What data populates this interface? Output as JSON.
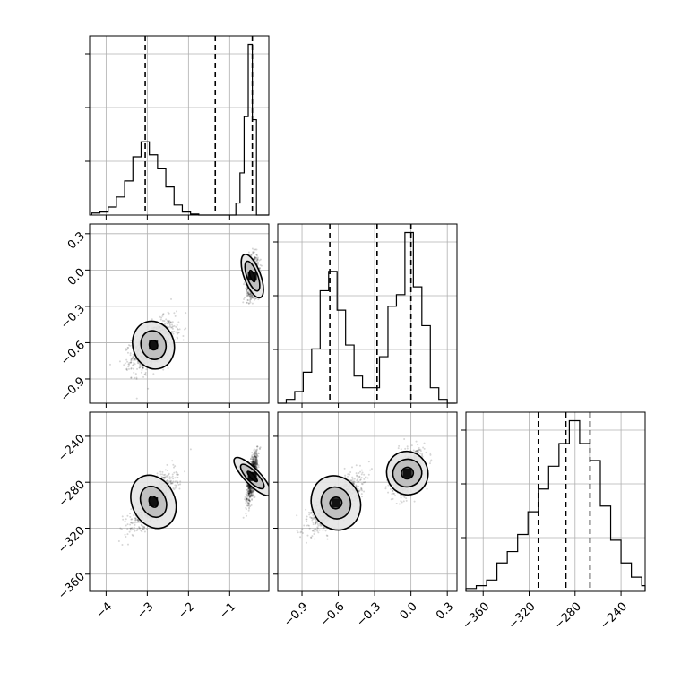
{
  "chart_data": {
    "type": "corner",
    "params": [
      {
        "axis_range": [
          -4.4,
          -0.05
        ],
        "x_ticks": [
          -4,
          -3,
          -2,
          -1
        ],
        "x_tick_labels": [
          "−4",
          "−3",
          "−2",
          "−1"
        ],
        "quantiles": [
          -3.05,
          -1.35,
          -0.45
        ],
        "hist_bin_edges": [
          -4.35,
          -4.15,
          -3.95,
          -3.75,
          -3.55,
          -3.35,
          -3.15,
          -2.95,
          -2.75,
          -2.55,
          -2.35,
          -2.15,
          -1.95,
          -1.75,
          -1.55,
          -1.35,
          -1.15,
          -0.95,
          -0.85,
          -0.75,
          -0.65,
          -0.55,
          -0.45,
          -0.35,
          -0.25,
          -0.05
        ],
        "hist_counts": [
          2,
          3,
          8,
          18,
          34,
          58,
          73,
          60,
          46,
          28,
          10,
          3,
          1,
          0,
          0,
          0,
          0,
          0,
          12,
          42,
          98,
          170,
          95,
          0,
          0
        ]
      },
      {
        "axis_range": [
          -1.1,
          0.38
        ],
        "x_ticks": [
          -0.9,
          -0.6,
          -0.3,
          0.0,
          0.3
        ],
        "x_tick_labels": [
          "−0.9",
          "−0.6",
          "−0.3",
          "0.0",
          "0.3"
        ],
        "y_ticks": [
          -0.9,
          -0.6,
          -0.3,
          0.0,
          0.3
        ],
        "y_tick_labels": [
          "−0.9",
          "−0.6",
          "−0.3",
          "0.0",
          "0.3"
        ],
        "quantiles": [
          -0.67,
          -0.28,
          0.0
        ],
        "hist_bin_edges": [
          -1.1,
          -1.03,
          -0.96,
          -0.89,
          -0.82,
          -0.75,
          -0.68,
          -0.61,
          -0.54,
          -0.47,
          -0.4,
          -0.33,
          -0.26,
          -0.19,
          -0.12,
          -0.05,
          0.02,
          0.09,
          0.16,
          0.23,
          0.3,
          0.37
        ],
        "hist_counts": [
          0,
          1,
          3,
          8,
          14,
          29,
          34,
          24,
          15,
          7,
          4,
          4,
          12,
          25,
          28,
          44,
          30,
          20,
          4,
          1,
          0
        ]
      },
      {
        "axis_range": [
          -375,
          -219
        ],
        "x_ticks": [
          -360,
          -320,
          -280,
          -240
        ],
        "x_tick_labels": [
          "−360",
          "−320",
          "−280",
          "−240"
        ],
        "y_ticks": [
          -360,
          -320,
          -280,
          -240
        ],
        "y_tick_labels": [
          "−360",
          "−320",
          "−280",
          "−240"
        ],
        "quantiles": [
          -312,
          -288,
          -267
        ],
        "hist_bin_edges": [
          -375,
          -366,
          -357,
          -348,
          -339,
          -330,
          -321,
          -312,
          -303,
          -294,
          -285,
          -276,
          -267,
          -258,
          -249,
          -240,
          -231,
          -222,
          -219
        ],
        "hist_counts": [
          1,
          2,
          4,
          10,
          14,
          20,
          28,
          36,
          44,
          52,
          60,
          52,
          46,
          30,
          18,
          10,
          5,
          2
        ]
      }
    ],
    "pairs": [
      {
        "row": 1,
        "col": 0,
        "clusters": [
          {
            "center": [
              -2.85,
              -0.62
            ],
            "spread": [
              0.26,
              0.1
            ],
            "corr": 0.5,
            "levels": [
              [
                0.1,
                0.04
              ],
              [
                0.3,
                0.12
              ],
              [
                0.5,
                0.2
              ]
            ]
          },
          {
            "center": [
              -0.45,
              -0.05
            ],
            "spread": [
              0.07,
              0.08
            ],
            "corr": 0.2,
            "levels": [
              [
                0.05,
                0.05
              ],
              [
                0.13,
                0.13
              ],
              [
                0.2,
                0.19
              ]
            ]
          }
        ]
      },
      {
        "row": 2,
        "col": 0,
        "clusters": [
          {
            "center": [
              -2.85,
              -297
            ],
            "spread": [
              0.25,
              11
            ],
            "corr": 0.75,
            "levels": [
              [
                0.1,
                5
              ],
              [
                0.3,
                14
              ],
              [
                0.52,
                24
              ]
            ]
          },
          {
            "center": [
              -0.45,
              -275
            ],
            "spread": [
              0.06,
              10
            ],
            "corr": 0.7,
            "levels": [
              [
                0.05,
                6
              ],
              [
                0.13,
                14
              ],
              [
                0.19,
                22
              ]
            ]
          }
        ]
      },
      {
        "row": 2,
        "col": 1,
        "clusters": [
          {
            "center": [
              -0.62,
              -298
            ],
            "spread": [
              0.1,
              11
            ],
            "corr": 0.75,
            "levels": [
              [
                0.05,
                5
              ],
              [
                0.12,
                14
              ],
              [
                0.2,
                24
              ]
            ]
          },
          {
            "center": [
              -0.03,
              -272
            ],
            "spread": [
              0.06,
              9
            ],
            "corr": 0.4,
            "levels": [
              [
                0.05,
                5
              ],
              [
                0.12,
                12
              ],
              [
                0.17,
                19
              ]
            ]
          }
        ]
      }
    ]
  }
}
